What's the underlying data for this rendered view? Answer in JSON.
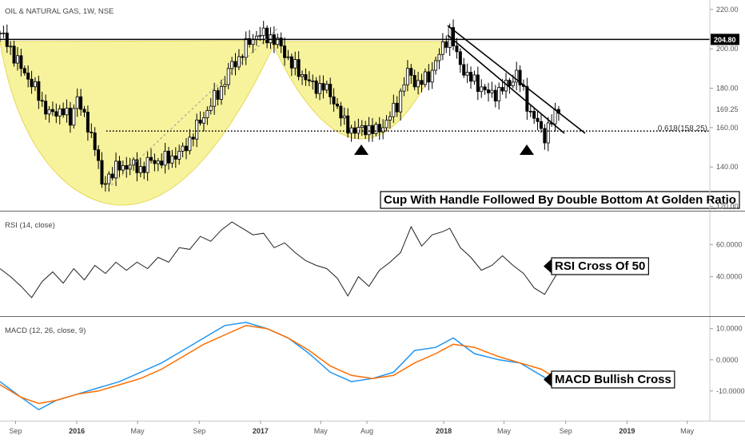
{
  "chart_data": [
    {
      "panel": "price",
      "type": "candlestick",
      "title": "OIL & NATURAL GAS, 1W, NSE",
      "y_ticks": [
        120,
        140,
        160,
        180,
        200,
        220
      ],
      "y_tick_labels": [
        "120.00",
        "140.00",
        "160.00",
        "180.00",
        "200.00",
        "220.00"
      ],
      "ylim": [
        119,
        224
      ],
      "x_date_range": [
        "2015-08-01",
        "2019-07-01"
      ],
      "close_path": [
        [
          "2015-08-01",
          208
        ],
        [
          "2015-08-22",
          200
        ],
        [
          "2015-09-12",
          190
        ],
        [
          "2015-10-03",
          183
        ],
        [
          "2015-10-24",
          172
        ],
        [
          "2015-11-14",
          166
        ],
        [
          "2015-12-05",
          170
        ],
        [
          "2015-12-19",
          162
        ],
        [
          "2016-01-02",
          177
        ],
        [
          "2016-01-16",
          164
        ],
        [
          "2016-02-06",
          152
        ],
        [
          "2016-02-20",
          130
        ],
        [
          "2016-03-05",
          136
        ],
        [
          "2016-03-26",
          140
        ],
        [
          "2016-04-16",
          141
        ],
        [
          "2016-05-07",
          139
        ],
        [
          "2016-05-28",
          143
        ],
        [
          "2016-06-18",
          143
        ],
        [
          "2016-07-09",
          145
        ],
        [
          "2016-07-30",
          148
        ],
        [
          "2016-08-13",
          154
        ],
        [
          "2016-09-03",
          163
        ],
        [
          "2016-09-24",
          172
        ],
        [
          "2016-10-15",
          180
        ],
        [
          "2016-11-05",
          192
        ],
        [
          "2016-11-19",
          195
        ],
        [
          "2016-12-10",
          204
        ],
        [
          "2016-12-24",
          207
        ],
        [
          "2017-01-07",
          207
        ],
        [
          "2017-01-21",
          206
        ],
        [
          "2017-02-11",
          201
        ],
        [
          "2017-03-04",
          192
        ],
        [
          "2017-03-25",
          187
        ],
        [
          "2017-04-15",
          181
        ],
        [
          "2017-05-06",
          181
        ],
        [
          "2017-05-27",
          174
        ],
        [
          "2017-06-17",
          162
        ],
        [
          "2017-07-08",
          158
        ],
        [
          "2017-07-29",
          160
        ],
        [
          "2017-08-19",
          158
        ],
        [
          "2017-09-09",
          163
        ],
        [
          "2017-09-30",
          172
        ],
        [
          "2017-10-21",
          188
        ],
        [
          "2017-11-11",
          182
        ],
        [
          "2017-12-02",
          186
        ],
        [
          "2017-12-23",
          197
        ],
        [
          "2018-01-13",
          209
        ],
        [
          "2018-01-27",
          196
        ],
        [
          "2018-02-17",
          186
        ],
        [
          "2018-03-10",
          182
        ],
        [
          "2018-03-31",
          177
        ],
        [
          "2018-04-21",
          178
        ],
        [
          "2018-05-12",
          183
        ],
        [
          "2018-05-26",
          187
        ],
        [
          "2018-06-09",
          178
        ],
        [
          "2018-06-23",
          167
        ],
        [
          "2018-07-07",
          162
        ],
        [
          "2018-07-21",
          156
        ],
        [
          "2018-08-04",
          163
        ],
        [
          "2018-08-18",
          170
        ]
      ],
      "last_price_label": "204.80",
      "last_close_label": "169.25",
      "horizontal_levels": [
        {
          "name": "resistance",
          "value": 204.8
        },
        {
          "name": "fibonacci",
          "value": 158.25,
          "label": "0.618(158.25)"
        }
      ],
      "annotation": "Cup With Handle Followed By Double Bottom At Golden Ratio"
    },
    {
      "panel": "rsi",
      "type": "line",
      "title": "RSI (14, close)",
      "y_ticks": [
        40,
        60
      ],
      "y_tick_labels": [
        "40.0000",
        "60.0000"
      ],
      "ylim": [
        17,
        79
      ],
      "x_date_range": [
        "2015-08-01",
        "2019-07-01"
      ],
      "values": [
        [
          "2015-08-01",
          45
        ],
        [
          "2015-08-22",
          40
        ],
        [
          "2015-09-12",
          34
        ],
        [
          "2015-10-03",
          27
        ],
        [
          "2015-10-24",
          37
        ],
        [
          "2015-11-14",
          43
        ],
        [
          "2015-12-05",
          36
        ],
        [
          "2015-12-26",
          45
        ],
        [
          "2016-01-16",
          38
        ],
        [
          "2016-02-06",
          47
        ],
        [
          "2016-02-27",
          42
        ],
        [
          "2016-03-19",
          49
        ],
        [
          "2016-04-09",
          44
        ],
        [
          "2016-04-30",
          49
        ],
        [
          "2016-05-21",
          45
        ],
        [
          "2016-06-11",
          52
        ],
        [
          "2016-07-02",
          49
        ],
        [
          "2016-07-23",
          58
        ],
        [
          "2016-08-13",
          57
        ],
        [
          "2016-09-03",
          65
        ],
        [
          "2016-09-24",
          62
        ],
        [
          "2016-10-15",
          69
        ],
        [
          "2016-11-05",
          74
        ],
        [
          "2016-11-26",
          70
        ],
        [
          "2016-12-17",
          66
        ],
        [
          "2017-01-07",
          67
        ],
        [
          "2017-01-28",
          58
        ],
        [
          "2017-02-18",
          61
        ],
        [
          "2017-03-11",
          55
        ],
        [
          "2017-04-01",
          50
        ],
        [
          "2017-04-22",
          47
        ],
        [
          "2017-05-13",
          45
        ],
        [
          "2017-06-03",
          39
        ],
        [
          "2017-06-24",
          28
        ],
        [
          "2017-07-15",
          40
        ],
        [
          "2017-08-05",
          34
        ],
        [
          "2017-08-26",
          44
        ],
        [
          "2017-09-16",
          49
        ],
        [
          "2017-10-07",
          55
        ],
        [
          "2017-10-28",
          71
        ],
        [
          "2017-11-18",
          59
        ],
        [
          "2017-12-09",
          66
        ],
        [
          "2017-12-30",
          68
        ],
        [
          "2018-01-13",
          70
        ],
        [
          "2018-02-03",
          58
        ],
        [
          "2018-02-24",
          52
        ],
        [
          "2018-03-17",
          44
        ],
        [
          "2018-04-07",
          47
        ],
        [
          "2018-04-28",
          53
        ],
        [
          "2018-05-19",
          47
        ],
        [
          "2018-06-09",
          42
        ],
        [
          "2018-06-30",
          33
        ],
        [
          "2018-07-21",
          29
        ],
        [
          "2018-08-11",
          40
        ],
        [
          "2018-08-25",
          48
        ]
      ],
      "annotation": "RSI Cross Of 50"
    },
    {
      "panel": "macd",
      "type": "line",
      "title": "MACD (12, 26, close, 9)",
      "y_ticks": [
        -10,
        0,
        10
      ],
      "y_tick_labels": [
        "-10.0000",
        "0.0000",
        "10.0000"
      ],
      "ylim": [
        -19,
        13
      ],
      "x_date_range": [
        "2015-08-01",
        "2019-07-01"
      ],
      "x_tick_labels": [
        "Sep",
        "2016",
        "May",
        "Sep",
        "2017",
        "May",
        "Aug",
        "2018",
        "May",
        "Sep",
        "2019",
        "May"
      ],
      "x_tick_dates": [
        "2015-09-01",
        "2016-01-01",
        "2016-05-01",
        "2016-09-01",
        "2017-01-01",
        "2017-05-01",
        "2017-08-01",
        "2018-01-01",
        "2018-05-01",
        "2018-09-01",
        "2019-01-01",
        "2019-05-01"
      ],
      "series": [
        {
          "color": "#2196F3",
          "values": [
            [
              "2015-08-01",
              -7
            ],
            [
              "2015-09-12",
              -12
            ],
            [
              "2015-10-17",
              -16
            ],
            [
              "2015-11-21",
              -13
            ],
            [
              "2016-01-02",
              -11
            ],
            [
              "2016-02-13",
              -9
            ],
            [
              "2016-03-26",
              -7
            ],
            [
              "2016-05-07",
              -4
            ],
            [
              "2016-06-18",
              -1
            ],
            [
              "2016-07-30",
              3
            ],
            [
              "2016-09-10",
              7
            ],
            [
              "2016-10-22",
              11
            ],
            [
              "2016-12-03",
              12
            ],
            [
              "2017-01-14",
              10
            ],
            [
              "2017-02-25",
              7
            ],
            [
              "2017-04-08",
              2
            ],
            [
              "2017-05-20",
              -4
            ],
            [
              "2017-07-01",
              -7
            ],
            [
              "2017-08-12",
              -6
            ],
            [
              "2017-09-23",
              -4
            ],
            [
              "2017-11-04",
              3
            ],
            [
              "2017-12-16",
              4
            ],
            [
              "2018-01-20",
              7
            ],
            [
              "2018-03-03",
              2
            ],
            [
              "2018-04-21",
              0
            ],
            [
              "2018-06-02",
              -1
            ],
            [
              "2018-07-14",
              -5
            ],
            [
              "2018-08-04",
              -7
            ],
            [
              "2018-08-25",
              -5
            ]
          ]
        },
        {
          "color": "#FF6D00",
          "values": [
            [
              "2015-08-01",
              -8
            ],
            [
              "2015-09-12",
              -12
            ],
            [
              "2015-10-17",
              -14
            ],
            [
              "2015-11-21",
              -13
            ],
            [
              "2016-01-02",
              -11
            ],
            [
              "2016-02-13",
              -10
            ],
            [
              "2016-03-26",
              -8
            ],
            [
              "2016-05-07",
              -6
            ],
            [
              "2016-06-18",
              -3
            ],
            [
              "2016-07-30",
              1
            ],
            [
              "2016-09-10",
              5
            ],
            [
              "2016-10-22",
              8
            ],
            [
              "2016-12-03",
              11
            ],
            [
              "2017-01-14",
              10
            ],
            [
              "2017-02-25",
              7
            ],
            [
              "2017-04-08",
              3
            ],
            [
              "2017-05-20",
              -2
            ],
            [
              "2017-07-01",
              -5
            ],
            [
              "2017-08-12",
              -6
            ],
            [
              "2017-09-23",
              -5
            ],
            [
              "2017-11-04",
              -1
            ],
            [
              "2017-12-16",
              2
            ],
            [
              "2018-01-20",
              5
            ],
            [
              "2018-03-03",
              4
            ],
            [
              "2018-04-21",
              1
            ],
            [
              "2018-06-02",
              -1
            ],
            [
              "2018-07-14",
              -3
            ],
            [
              "2018-08-04",
              -5
            ],
            [
              "2018-08-25",
              -6
            ]
          ]
        }
      ],
      "annotation": "MACD Bullish Cross"
    }
  ]
}
